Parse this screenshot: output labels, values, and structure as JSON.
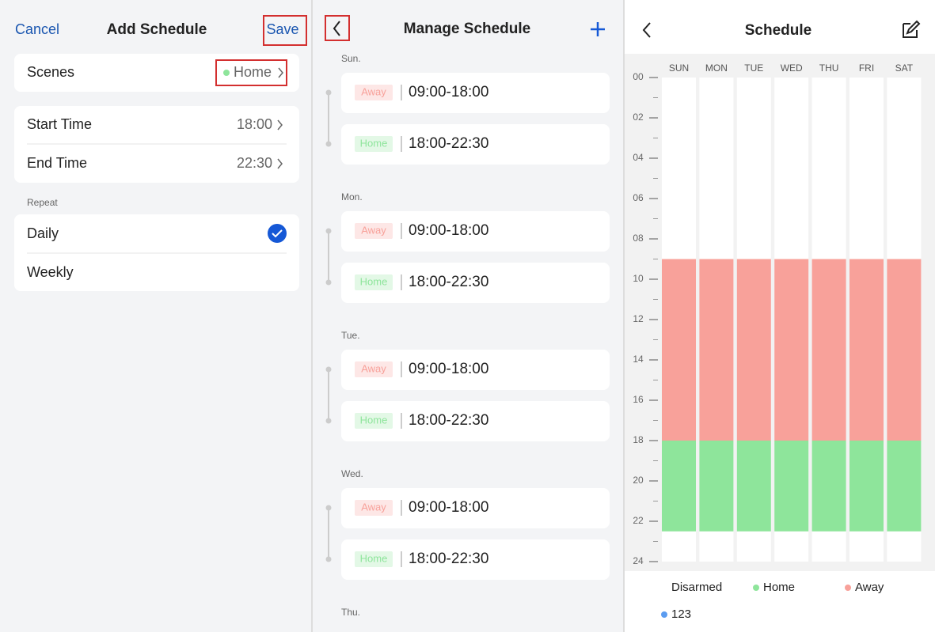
{
  "add_schedule": {
    "cancel": "Cancel",
    "title": "Add Schedule",
    "save": "Save",
    "scenes_label": "Scenes",
    "scene_value": "Home",
    "start_time_label": "Start Time",
    "start_time": "18:00",
    "end_time_label": "End Time",
    "end_time": "22:30",
    "repeat_label": "Repeat",
    "repeat_options": [
      "Daily",
      "Weekly"
    ]
  },
  "manage_schedule": {
    "title": "Manage Schedule",
    "days": [
      {
        "label": "Sun.",
        "entries": [
          {
            "scene": "Away",
            "time": "09:00-18:00"
          },
          {
            "scene": "Home",
            "time": "18:00-22:30"
          }
        ]
      },
      {
        "label": "Mon.",
        "entries": [
          {
            "scene": "Away",
            "time": "09:00-18:00"
          },
          {
            "scene": "Home",
            "time": "18:00-22:30"
          }
        ]
      },
      {
        "label": "Tue.",
        "entries": [
          {
            "scene": "Away",
            "time": "09:00-18:00"
          },
          {
            "scene": "Home",
            "time": "18:00-22:30"
          }
        ]
      },
      {
        "label": "Wed.",
        "entries": [
          {
            "scene": "Away",
            "time": "09:00-18:00"
          },
          {
            "scene": "Home",
            "time": "18:00-22:30"
          }
        ]
      },
      {
        "label": "Thu."
      }
    ]
  },
  "schedule": {
    "title": "Schedule",
    "days": [
      "SUN",
      "MON",
      "TUE",
      "WED",
      "THU",
      "FRI",
      "SAT"
    ],
    "ylim": [
      0,
      24
    ],
    "yticks": [
      {
        "value": 0,
        "label": "00"
      },
      {
        "value": 2,
        "label": "02"
      },
      {
        "value": 4,
        "label": "04"
      },
      {
        "value": 6,
        "label": "06"
      },
      {
        "value": 8,
        "label": "08"
      },
      10,
      12,
      14,
      16,
      18,
      20,
      22,
      24
    ],
    "minor_yticks": [
      1,
      3,
      5,
      7,
      9,
      11,
      13,
      15,
      17,
      19,
      21,
      23
    ],
    "segments": [
      {
        "name": "Away",
        "start": 9,
        "end": 18,
        "color": "#f8a19a"
      },
      {
        "name": "Home",
        "start": 18,
        "end": 22.5,
        "color": "#8ee59b"
      }
    ],
    "legend": [
      {
        "name": "Disarmed",
        "color": "#ffffff"
      },
      {
        "name": "Home",
        "color": "#8ee59b"
      },
      {
        "name": "Away",
        "color": "#f8a19a"
      },
      {
        "name": "123",
        "color": "#5b9cf0"
      }
    ]
  }
}
